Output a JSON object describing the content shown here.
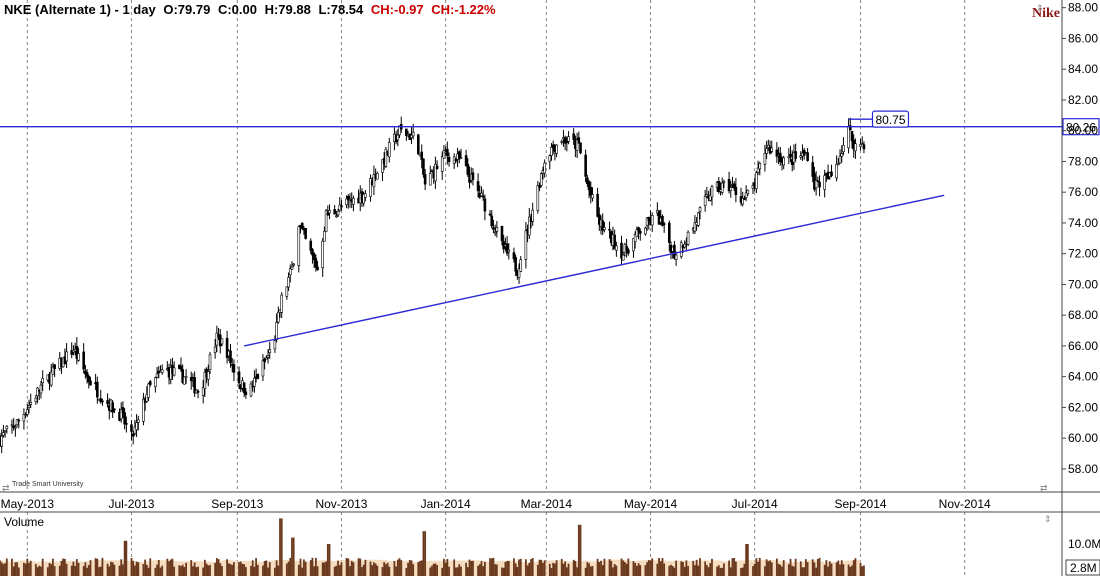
{
  "header": {
    "title": "NKE (Alternate 1) - 1 day",
    "open": "O:79.79",
    "close": "C:0.00",
    "high": "H:79.88",
    "low": "L:78.54",
    "change": "CH:-0.97",
    "change_pct": "CH:-1.22%"
  },
  "watermark": "Nike",
  "credit": "Trade Smart University",
  "volume_label": "Volume",
  "price_tags": {
    "resistance": "80.26",
    "high_marker": "80.75"
  },
  "colors": {
    "line": "#2a2ad6",
    "candle": "#000000",
    "volume": "#6b3a1e",
    "volume_avg": "#f2cfa5",
    "grid": "#888888"
  },
  "chart_data": {
    "type": "candlestick",
    "interval": "1 day",
    "ylim": [
      56.5,
      88.5
    ],
    "yticks": [
      "58.00",
      "60.00",
      "62.00",
      "64.00",
      "66.00",
      "68.00",
      "70.00",
      "72.00",
      "74.00",
      "76.00",
      "78.00",
      "80.00",
      "82.00",
      "84.00",
      "86.00",
      "88.00"
    ],
    "xticks": [
      "May-2013",
      "Jul-2013",
      "Sep-2013",
      "Nov-2013",
      "Jan-2014",
      "Mar-2014",
      "May-2014",
      "Jul-2014",
      "Sep-2014",
      "Nov-2014"
    ],
    "xrange": [
      "2013-04-15",
      "2014-12-28"
    ],
    "close_path": [
      [
        "2013-04-15",
        60.0
      ],
      [
        "2013-04-25",
        61.0
      ],
      [
        "2013-05-10",
        63.5
      ],
      [
        "2013-05-28",
        65.8
      ],
      [
        "2013-06-05",
        64.0
      ],
      [
        "2013-06-15",
        62.5
      ],
      [
        "2013-06-25",
        61.5
      ],
      [
        "2013-07-01",
        60.0
      ],
      [
        "2013-07-05",
        61.0
      ],
      [
        "2013-07-10",
        63.0
      ],
      [
        "2013-07-20",
        64.5
      ],
      [
        "2013-08-01",
        64.0
      ],
      [
        "2013-08-10",
        63.0
      ],
      [
        "2013-08-20",
        66.5
      ],
      [
        "2013-08-25",
        66.0
      ],
      [
        "2013-08-28",
        65.0
      ],
      [
        "2013-09-03",
        63.5
      ],
      [
        "2013-09-08",
        63.0
      ],
      [
        "2013-09-15",
        64.5
      ],
      [
        "2013-09-22",
        66.0
      ],
      [
        "2013-09-27",
        69.0
      ],
      [
        "2013-10-03",
        71.0
      ],
      [
        "2013-10-07",
        74.0
      ],
      [
        "2013-10-12",
        72.5
      ],
      [
        "2013-10-18",
        71.0
      ],
      [
        "2013-10-23",
        74.5
      ],
      [
        "2013-11-01",
        75.0
      ],
      [
        "2013-11-15",
        76.0
      ],
      [
        "2013-11-25",
        78.0
      ],
      [
        "2013-12-05",
        80.0
      ],
      [
        "2013-12-15",
        79.5
      ],
      [
        "2013-12-20",
        76.5
      ],
      [
        "2014-01-01",
        78.5
      ],
      [
        "2014-01-10",
        78.0
      ],
      [
        "2014-01-25",
        75.0
      ],
      [
        "2014-02-03",
        72.5
      ],
      [
        "2014-02-12",
        71.0
      ],
      [
        "2014-02-20",
        74.5
      ],
      [
        "2014-03-01",
        78.5
      ],
      [
        "2014-03-10",
        79.5
      ],
      [
        "2014-03-20",
        79.0
      ],
      [
        "2014-03-25",
        76.5
      ],
      [
        "2014-04-01",
        74.0
      ],
      [
        "2014-04-15",
        72.0
      ],
      [
        "2014-04-25",
        73.5
      ],
      [
        "2014-05-05",
        74.5
      ],
      [
        "2014-05-15",
        72.0
      ],
      [
        "2014-05-25",
        73.5
      ],
      [
        "2014-06-05",
        76.0
      ],
      [
        "2014-06-15",
        76.5
      ],
      [
        "2014-06-25",
        75.5
      ],
      [
        "2014-07-01",
        76.5
      ],
      [
        "2014-07-08",
        79.0
      ],
      [
        "2014-07-20",
        78.0
      ],
      [
        "2014-08-01",
        78.5
      ],
      [
        "2014-08-05",
        76.5
      ],
      [
        "2014-08-15",
        77.0
      ],
      [
        "2014-08-25",
        80.0
      ],
      [
        "2014-08-29",
        79.0
      ],
      [
        "2014-09-03",
        79.2
      ]
    ],
    "resistance": {
      "y": 80.26
    },
    "support_trendline": {
      "start": [
        "2013-09-05",
        66.0
      ],
      "end": [
        "2014-10-20",
        75.8
      ]
    },
    "high_marker": {
      "x1": "2014-08-25",
      "x2": "2014-09-08",
      "y": 80.75
    },
    "volume": {
      "ylabel": "Volume",
      "ticks": [
        "10.0M"
      ],
      "current_value": "2.8M",
      "ylim_m": [
        0,
        20
      ],
      "spikes": [
        [
          "2013-06-28",
          11
        ],
        [
          "2013-09-27",
          18
        ],
        [
          "2013-10-04",
          12
        ],
        [
          "2013-10-25",
          10
        ],
        [
          "2013-12-20",
          14
        ],
        [
          "2014-03-21",
          16
        ],
        [
          "2014-06-27",
          10
        ]
      ]
    }
  }
}
